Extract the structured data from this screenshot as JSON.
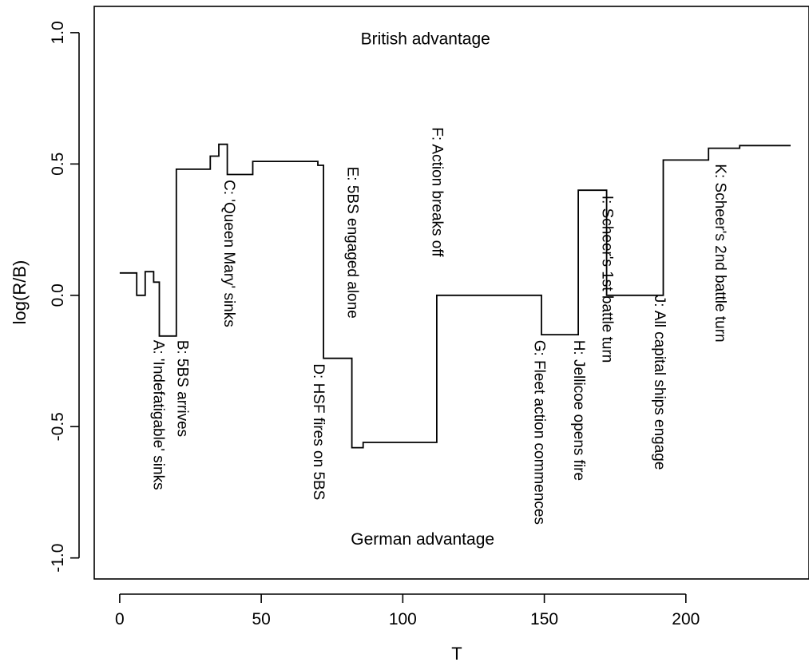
{
  "chart_data": {
    "type": "line",
    "step": true,
    "xlabel": "T",
    "ylabel": "log(R/B)",
    "xlim": [
      -9,
      243.5
    ],
    "ylim": [
      -1.08,
      1.1
    ],
    "xticks": [
      {
        "value": 0,
        "label": "0"
      },
      {
        "value": 50,
        "label": "50"
      },
      {
        "value": 100,
        "label": "100"
      },
      {
        "value": 150,
        "label": "150"
      },
      {
        "value": 200,
        "label": "200"
      }
    ],
    "yticks": [
      {
        "value": -1.0,
        "label": "-1.0"
      },
      {
        "value": -0.5,
        "label": "-0.5"
      },
      {
        "value": 0.0,
        "label": "0.0"
      },
      {
        "value": 0.5,
        "label": "0.5"
      },
      {
        "value": 1.0,
        "label": "1.0"
      }
    ],
    "series": [
      {
        "points": [
          [
            0,
            0.085
          ],
          [
            6,
            0.085
          ],
          [
            6,
            0.0
          ],
          [
            9,
            0.0
          ],
          [
            9,
            0.09
          ],
          [
            12,
            0.09
          ],
          [
            12,
            0.05
          ],
          [
            14,
            0.05
          ],
          [
            14,
            -0.155
          ],
          [
            20,
            -0.155
          ],
          [
            20,
            0.48
          ],
          [
            32,
            0.48
          ],
          [
            32,
            0.53
          ],
          [
            35,
            0.53
          ],
          [
            35,
            0.575
          ],
          [
            38,
            0.575
          ],
          [
            38,
            0.46
          ],
          [
            47,
            0.46
          ],
          [
            47,
            0.51
          ],
          [
            70,
            0.51
          ],
          [
            70,
            0.495
          ],
          [
            72,
            0.495
          ],
          [
            72,
            -0.24
          ],
          [
            82,
            -0.24
          ],
          [
            82,
            -0.58
          ],
          [
            86,
            -0.58
          ],
          [
            86,
            -0.56
          ],
          [
            112,
            -0.56
          ],
          [
            112,
            0.0
          ],
          [
            149,
            0.0
          ],
          [
            149,
            -0.15
          ],
          [
            162,
            -0.15
          ],
          [
            162,
            0.4
          ],
          [
            172,
            0.4
          ],
          [
            172,
            0.0
          ],
          [
            192,
            0.0
          ],
          [
            192,
            0.515
          ],
          [
            208,
            0.515
          ],
          [
            208,
            0.56
          ],
          [
            219,
            0.56
          ],
          [
            219,
            0.57
          ],
          [
            237,
            0.57
          ]
        ]
      }
    ],
    "region_labels": [
      {
        "text": "British advantage",
        "x": 108,
        "y": 0.955
      },
      {
        "text": "German advantage",
        "x": 107,
        "y": -0.95
      }
    ],
    "annotations": [
      {
        "text": "A: 'Indefatigable' sinks",
        "x": 14,
        "y_top": -0.17
      },
      {
        "text": "B: 5BS arrives",
        "x": 22.5,
        "y_top": -0.17
      },
      {
        "text": "C: 'Queen Mary' sinks",
        "x": 39,
        "y_top": 0.44
      },
      {
        "text": "D: HSF fires on 5BS",
        "x": 70.5,
        "y_top": -0.26
      },
      {
        "text": "E: 5BS engaged alone",
        "x": 82.5,
        "y_top": 0.49
      },
      {
        "text": "F: Action breaks off",
        "x": 112.5,
        "y_top": 0.64
      },
      {
        "text": "G: Fleet action commences",
        "x": 148.5,
        "y_top": -0.17
      },
      {
        "text": "H: Jellicoe opens fire",
        "x": 162.5,
        "y_top": -0.17
      },
      {
        "text": "I: Scheer's 1st battle turn",
        "x": 172.5,
        "y_top": 0.38
      },
      {
        "text": "J: All capital ships engage",
        "x": 191,
        "y_top": 0.0
      },
      {
        "text": "K: Scheer's 2nd battle turn",
        "x": 212.5,
        "y_top": 0.5
      }
    ]
  }
}
